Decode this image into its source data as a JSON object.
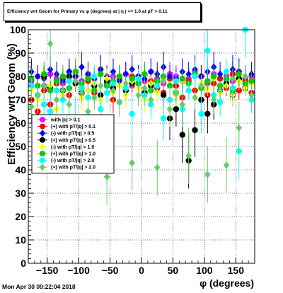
{
  "chart_data": {
    "type": "scatter",
    "title": "Efficiency wrt Geom for Primary vs φ (degrees) at | η | <= 1.0 at pT > 0.11",
    "xlabel": "φ (degrees)",
    "ylabel": "Efficiency wrt Geom (%)",
    "xlim": [
      -180,
      180
    ],
    "ylim": [
      0,
      100
    ],
    "xticks": [
      -150,
      -100,
      -50,
      0,
      50,
      100,
      150
    ],
    "yticks": [
      0,
      10,
      20,
      30,
      40,
      50,
      60,
      70,
      80,
      90,
      100
    ],
    "grid": true,
    "legend_position": "left-middle",
    "series": [
      {
        "name": "with |c| > 0.1",
        "color": "#ff00ff",
        "marker": "circle",
        "x": [
          -175,
          -165,
          -155,
          -145,
          -135,
          -125,
          -115,
          -105,
          -95,
          -85,
          -75,
          -65,
          -55,
          -45,
          -35,
          -25,
          -15,
          -5,
          5,
          15,
          25,
          35,
          45,
          55,
          65,
          75,
          85,
          95,
          105,
          115,
          125,
          135,
          145,
          155,
          165,
          175
        ],
        "y": [
          78,
          80,
          76,
          81,
          79,
          77,
          82,
          80,
          78,
          81,
          79,
          83,
          77,
          80,
          79,
          81,
          76,
          80,
          78,
          82,
          79,
          77,
          81,
          80,
          78,
          79,
          82,
          80,
          77,
          81,
          79,
          80,
          78,
          82,
          79,
          80
        ]
      },
      {
        "name": "(+) with pT/|q| > 0.1",
        "color": "#ff0000",
        "marker": "circle",
        "x": [
          -175,
          -165,
          -155,
          -145,
          -135,
          -125,
          -115,
          -105,
          -95,
          -85,
          -75,
          -65,
          -55,
          -45,
          -35,
          -25,
          -15,
          -5,
          5,
          15,
          25,
          35,
          45,
          55,
          65,
          75,
          85,
          95,
          105,
          115,
          125,
          135,
          145,
          155,
          165,
          175
        ],
        "y": [
          70,
          65,
          74,
          68,
          77,
          79,
          72,
          80,
          75,
          78,
          73,
          81,
          76,
          70,
          79,
          74,
          80,
          77,
          72,
          78,
          75,
          73,
          79,
          76,
          71,
          78,
          74,
          80,
          72,
          77,
          79,
          75,
          81,
          74,
          78,
          73
        ]
      },
      {
        "name": "(-) with pT/|q| > 0.5",
        "color": "#0000ff",
        "marker": "diamond",
        "x": [
          -175,
          -165,
          -155,
          -145,
          -135,
          -125,
          -115,
          -105,
          -95,
          -85,
          -75,
          -65,
          -55,
          -45,
          -35,
          -25,
          -15,
          -5,
          5,
          15,
          25,
          35,
          45,
          55,
          65,
          75,
          85,
          95,
          105,
          115,
          125,
          135,
          145,
          155,
          165,
          175
        ],
        "y": [
          82,
          80,
          79,
          83,
          81,
          78,
          82,
          80,
          84,
          81,
          79,
          83,
          80,
          82,
          78,
          81,
          83,
          80,
          79,
          82,
          81,
          84,
          80,
          79,
          82,
          81,
          83,
          80,
          82,
          84,
          81,
          79,
          83,
          82,
          80,
          81
        ]
      },
      {
        "name": "(+) with pT/|q| > 0.5",
        "color": "#000000",
        "marker": "circle",
        "x": [
          -175,
          -165,
          -155,
          -145,
          -135,
          -125,
          -115,
          -105,
          -95,
          -85,
          -75,
          -65,
          -55,
          -45,
          -35,
          -25,
          -15,
          -5,
          5,
          15,
          25,
          35,
          45,
          55,
          65,
          75,
          85,
          95,
          105,
          115,
          125,
          135,
          145,
          155,
          165,
          175
        ],
        "y": [
          76,
          72,
          80,
          75,
          78,
          74,
          80,
          77,
          73,
          79,
          76,
          72,
          78,
          75,
          80,
          74,
          77,
          79,
          73,
          76,
          78,
          72,
          62,
          66,
          55,
          44,
          57,
          70,
          64,
          68,
          74,
          77,
          72,
          79,
          75,
          78
        ]
      },
      {
        "name": "(-) with pT/|q| > 1.0",
        "color": "#ffff00",
        "marker": "diamond",
        "x": [
          -175,
          -165,
          -155,
          -145,
          -135,
          -125,
          -115,
          -105,
          -95,
          -85,
          -75,
          -65,
          -55,
          -45,
          -35,
          -25,
          -15,
          -5,
          5,
          15,
          25,
          35,
          45,
          55,
          65,
          75,
          85,
          95,
          105,
          115,
          125,
          135,
          145,
          155,
          165,
          175
        ],
        "y": [
          74,
          70,
          68,
          76,
          66,
          72,
          75,
          78,
          71,
          74,
          77,
          70,
          79,
          73,
          76,
          72,
          78,
          75,
          70,
          77,
          73,
          79,
          76,
          72,
          78,
          74,
          71,
          77,
          75,
          79,
          73,
          76,
          72,
          78,
          75,
          77
        ]
      },
      {
        "name": "(+) with pT/|q| > 1.0",
        "color": "#00cc00",
        "marker": "circle",
        "x": [
          -175,
          -165,
          -155,
          -145,
          -135,
          -125,
          -115,
          -105,
          -95,
          -85,
          -75,
          -65,
          -55,
          -45,
          -35,
          -25,
          -15,
          -5,
          5,
          15,
          25,
          35,
          45,
          55,
          65,
          75,
          85,
          95,
          105,
          115,
          125,
          135,
          145,
          155,
          165,
          175
        ],
        "y": [
          79,
          76,
          81,
          74,
          78,
          80,
          75,
          82,
          77,
          79,
          74,
          81,
          76,
          78,
          80,
          75,
          79,
          77,
          81,
          74,
          78,
          80,
          76,
          73,
          79,
          77,
          81,
          75,
          78,
          80,
          76,
          79,
          74,
          81,
          77,
          78
        ]
      },
      {
        "name": "(-) with pT/|q| > 2.0",
        "color": "#00ffff",
        "marker": "circle",
        "x": [
          -175,
          -165,
          -155,
          -145,
          -135,
          -125,
          -115,
          -105,
          -95,
          -85,
          -75,
          -65,
          -55,
          -45,
          -35,
          -25,
          -15,
          -5,
          5,
          15,
          25,
          35,
          45,
          55,
          65,
          75,
          85,
          95,
          105,
          115,
          125,
          135,
          145,
          155,
          165,
          175
        ],
        "y": [
          76,
          72,
          68,
          65,
          74,
          70,
          78,
          62,
          75,
          71,
          80,
          66,
          73,
          77,
          69,
          75,
          64,
          79,
          72,
          68,
          76,
          62,
          70,
          78,
          66,
          74,
          80,
          64,
          91,
          72,
          69,
          82,
          75,
          48,
          100,
          70
        ]
      },
      {
        "name": "(+) with pT/|q| > 2.0",
        "color": "#66cc66",
        "marker": "diamond",
        "x": [
          -175,
          -165,
          -155,
          -145,
          -135,
          -125,
          -115,
          -105,
          -95,
          -85,
          -75,
          -65,
          -55,
          -45,
          -35,
          -25,
          -15,
          -5,
          5,
          15,
          25,
          35,
          45,
          55,
          65,
          75,
          85,
          95,
          105,
          115,
          125,
          135,
          145,
          155,
          165,
          175
        ],
        "y": [
          67,
          72,
          76,
          94,
          70,
          74,
          68,
          78,
          73,
          65,
          71,
          76,
          37,
          74,
          69,
          77,
          43,
          72,
          75,
          70,
          41,
          78,
          66,
          73,
          68,
          46,
          71,
          76,
          38,
          70,
          74,
          42,
          79,
          58,
          80,
          72
        ]
      }
    ]
  },
  "footer": {
    "timestamp": "Mon Apr 30 09:22:04 2018"
  }
}
